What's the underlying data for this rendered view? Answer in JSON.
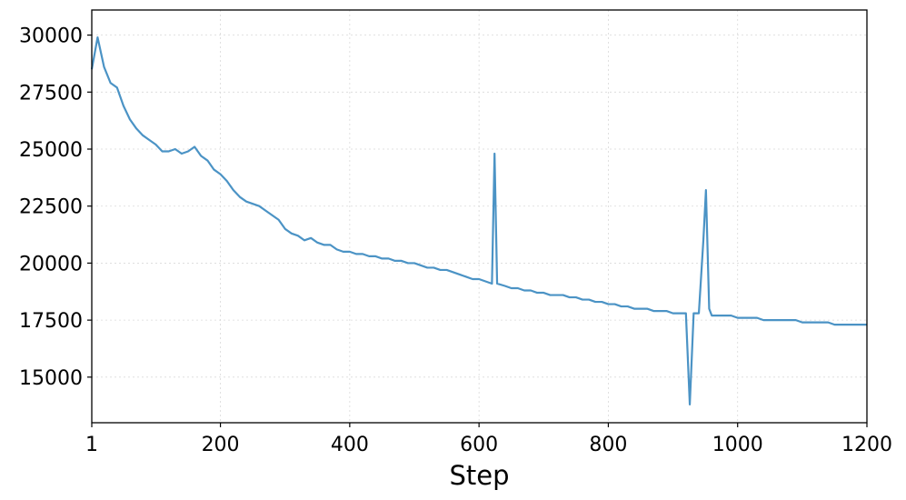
{
  "chart_data": {
    "type": "line",
    "xlabel": "Step",
    "ylabel": "",
    "xlim": [
      1,
      1200
    ],
    "ylim": [
      13000,
      31100
    ],
    "xticks": [
      1,
      200,
      400,
      600,
      800,
      1000,
      1200
    ],
    "xtick_labels": [
      "1",
      "200",
      "400",
      "600",
      "800",
      "1000",
      "1200"
    ],
    "yticks": [
      15000,
      17500,
      20000,
      22500,
      25000,
      27500,
      30000
    ],
    "ytick_labels": [
      "15000",
      "17500",
      "20000",
      "22500",
      "25000",
      "27500",
      "30000"
    ],
    "grid": true,
    "series": [
      {
        "color": "#4b93c5",
        "points": [
          [
            1,
            28500
          ],
          [
            10,
            29900
          ],
          [
            20,
            28600
          ],
          [
            30,
            27900
          ],
          [
            40,
            27700
          ],
          [
            50,
            26900
          ],
          [
            60,
            26300
          ],
          [
            70,
            25900
          ],
          [
            80,
            25600
          ],
          [
            90,
            25400
          ],
          [
            100,
            25200
          ],
          [
            110,
            24900
          ],
          [
            120,
            24900
          ],
          [
            130,
            25000
          ],
          [
            140,
            24800
          ],
          [
            150,
            24900
          ],
          [
            160,
            25100
          ],
          [
            170,
            24700
          ],
          [
            180,
            24500
          ],
          [
            190,
            24100
          ],
          [
            200,
            23900
          ],
          [
            210,
            23600
          ],
          [
            220,
            23200
          ],
          [
            230,
            22900
          ],
          [
            240,
            22700
          ],
          [
            250,
            22600
          ],
          [
            260,
            22500
          ],
          [
            270,
            22300
          ],
          [
            280,
            22100
          ],
          [
            290,
            21900
          ],
          [
            300,
            21500
          ],
          [
            310,
            21300
          ],
          [
            320,
            21200
          ],
          [
            330,
            21000
          ],
          [
            340,
            21100
          ],
          [
            350,
            20900
          ],
          [
            360,
            20800
          ],
          [
            370,
            20800
          ],
          [
            380,
            20600
          ],
          [
            390,
            20500
          ],
          [
            400,
            20500
          ],
          [
            410,
            20400
          ],
          [
            420,
            20400
          ],
          [
            430,
            20300
          ],
          [
            440,
            20300
          ],
          [
            450,
            20200
          ],
          [
            460,
            20200
          ],
          [
            470,
            20100
          ],
          [
            480,
            20100
          ],
          [
            490,
            20000
          ],
          [
            500,
            20000
          ],
          [
            510,
            19900
          ],
          [
            520,
            19800
          ],
          [
            530,
            19800
          ],
          [
            540,
            19700
          ],
          [
            550,
            19700
          ],
          [
            560,
            19600
          ],
          [
            570,
            19500
          ],
          [
            580,
            19400
          ],
          [
            590,
            19300
          ],
          [
            600,
            19300
          ],
          [
            610,
            19200
          ],
          [
            620,
            19100
          ],
          [
            624,
            24800
          ],
          [
            628,
            19100
          ],
          [
            640,
            19000
          ],
          [
            650,
            18900
          ],
          [
            660,
            18900
          ],
          [
            670,
            18800
          ],
          [
            680,
            18800
          ],
          [
            690,
            18700
          ],
          [
            700,
            18700
          ],
          [
            710,
            18600
          ],
          [
            720,
            18600
          ],
          [
            730,
            18600
          ],
          [
            740,
            18500
          ],
          [
            750,
            18500
          ],
          [
            760,
            18400
          ],
          [
            770,
            18400
          ],
          [
            780,
            18300
          ],
          [
            790,
            18300
          ],
          [
            800,
            18200
          ],
          [
            810,
            18200
          ],
          [
            820,
            18100
          ],
          [
            830,
            18100
          ],
          [
            840,
            18000
          ],
          [
            850,
            18000
          ],
          [
            860,
            18000
          ],
          [
            870,
            17900
          ],
          [
            880,
            17900
          ],
          [
            890,
            17900
          ],
          [
            900,
            17800
          ],
          [
            910,
            17800
          ],
          [
            920,
            17800
          ],
          [
            926,
            13800
          ],
          [
            932,
            17800
          ],
          [
            940,
            17800
          ],
          [
            947,
            21000
          ],
          [
            951,
            23200
          ],
          [
            956,
            18000
          ],
          [
            960,
            17700
          ],
          [
            970,
            17700
          ],
          [
            980,
            17700
          ],
          [
            990,
            17700
          ],
          [
            1000,
            17600
          ],
          [
            1010,
            17600
          ],
          [
            1020,
            17600
          ],
          [
            1030,
            17600
          ],
          [
            1040,
            17500
          ],
          [
            1050,
            17500
          ],
          [
            1060,
            17500
          ],
          [
            1070,
            17500
          ],
          [
            1080,
            17500
          ],
          [
            1090,
            17500
          ],
          [
            1100,
            17400
          ],
          [
            1110,
            17400
          ],
          [
            1120,
            17400
          ],
          [
            1130,
            17400
          ],
          [
            1140,
            17400
          ],
          [
            1150,
            17300
          ],
          [
            1160,
            17300
          ],
          [
            1170,
            17300
          ],
          [
            1180,
            17300
          ],
          [
            1190,
            17300
          ],
          [
            1200,
            17300
          ]
        ]
      }
    ]
  }
}
